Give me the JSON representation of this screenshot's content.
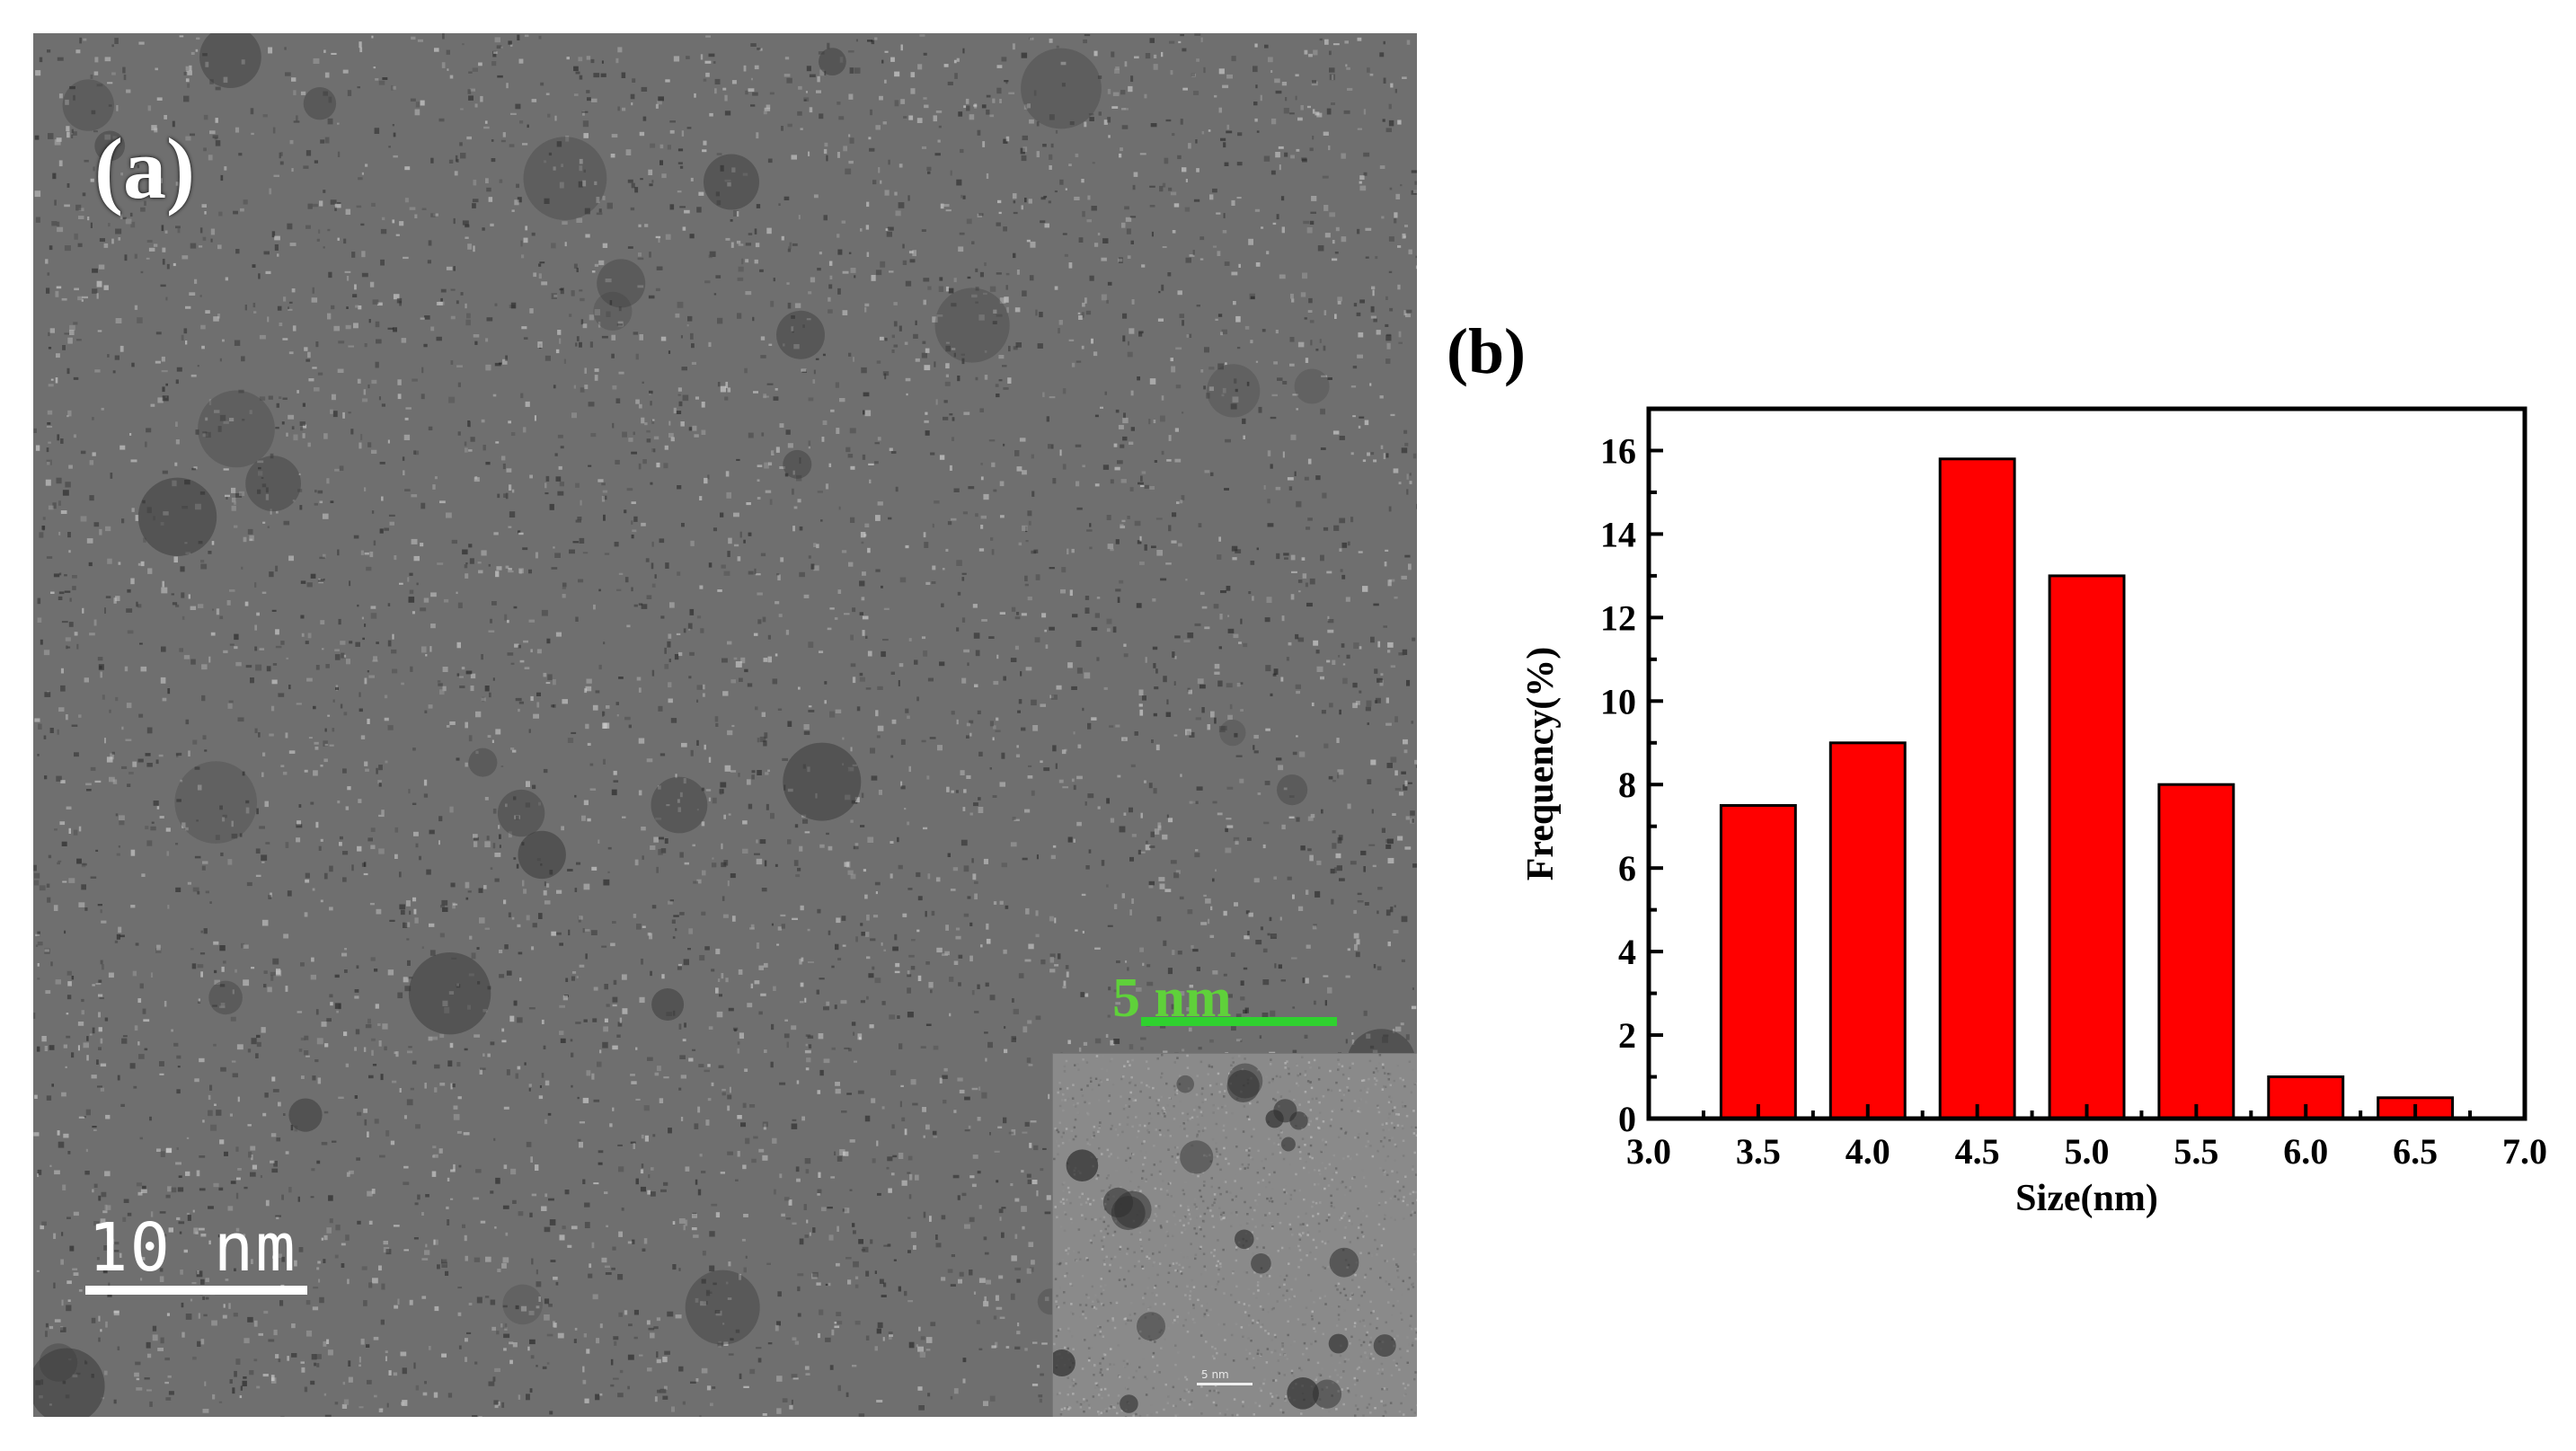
{
  "panel_a": {
    "label": "(a)",
    "scalebar_label": "10 nm",
    "inset_scalebar_label": "5 nm",
    "inset_tiny_label": "5 nm"
  },
  "panel_b": {
    "label": "(b)"
  },
  "chart_data": {
    "type": "bar",
    "categories": [
      "3.5",
      "4.0",
      "4.5",
      "5.0",
      "5.5",
      "6.0",
      "6.5"
    ],
    "x": [
      3.5,
      4.0,
      4.5,
      5.0,
      5.5,
      6.0,
      6.5
    ],
    "values": [
      7.5,
      9.0,
      15.8,
      13.0,
      8.0,
      1.0,
      0.5
    ],
    "xlabel": "Size(nm)",
    "ylabel": "Frequency(%)",
    "xlim": [
      3.0,
      7.0
    ],
    "ylim": [
      0,
      17
    ],
    "xticks": [
      "3.0",
      "3.5",
      "4.0",
      "4.5",
      "5.0",
      "5.5",
      "6.0",
      "6.5",
      "7.0"
    ],
    "yticks": [
      "0",
      "2",
      "4",
      "6",
      "8",
      "10",
      "12",
      "14",
      "16"
    ],
    "bar_color": "#ff0000",
    "bar_edge_color": "#000000",
    "grid": false,
    "legend": "none"
  }
}
